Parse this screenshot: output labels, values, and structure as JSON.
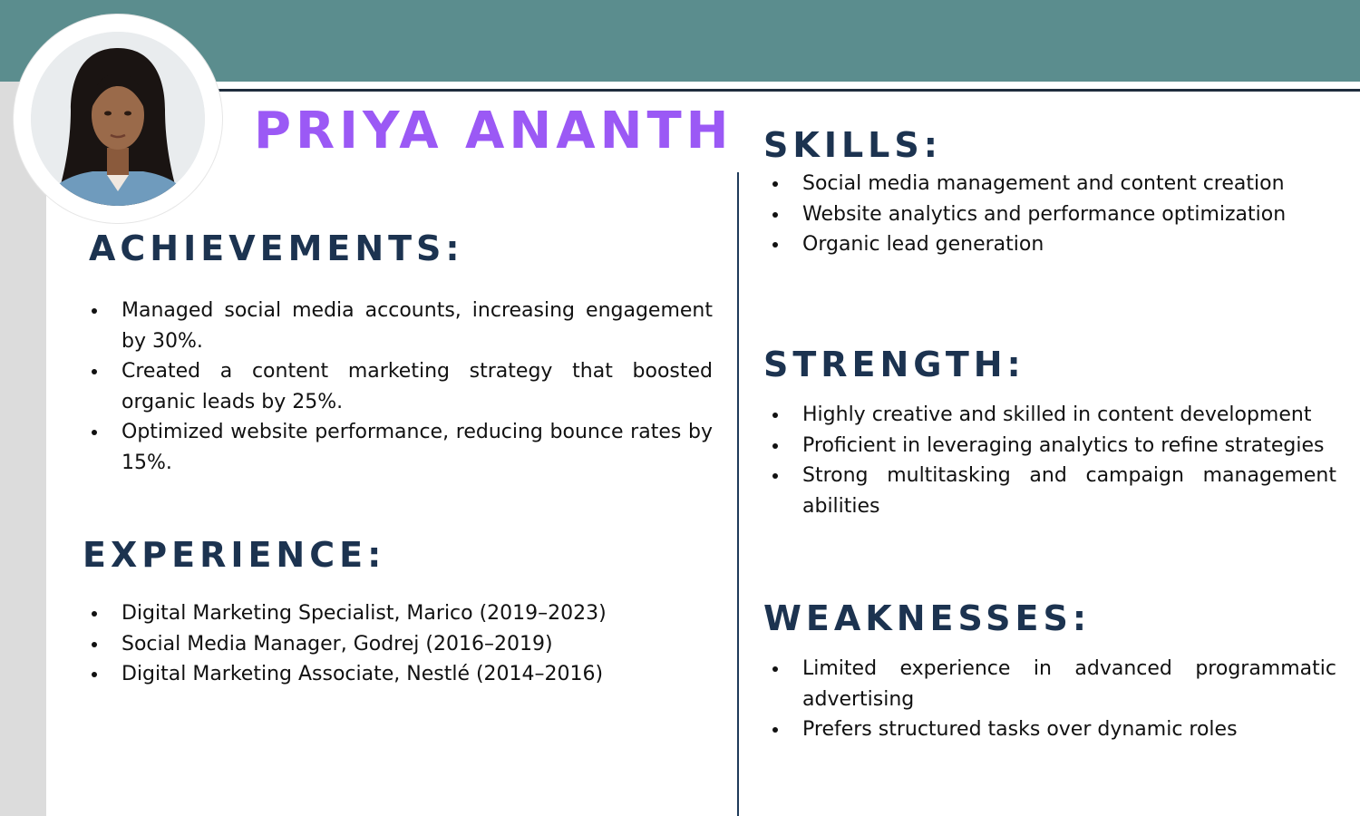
{
  "name": "PRIYA ANANTH",
  "avatar_icon": "profile-photo",
  "colors": {
    "top_band": "#5b8d8e",
    "name": "#9b59f5",
    "headings": "#1c3350",
    "left_strip": "#dcdcdc"
  },
  "achievements": {
    "heading": "ACHIEVEMENTS:",
    "items": [
      "Managed social media accounts, increasing engagement by 30%.",
      "Created a content marketing strategy that boosted organic leads by 25%.",
      "Optimized website performance, reducing bounce rates by 15%."
    ]
  },
  "experience": {
    "heading": "EXPERIENCE:",
    "items": [
      "Digital Marketing Specialist, Marico (2019–2023)",
      "Social Media Manager, Godrej (2016–2019)",
      "Digital Marketing Associate, Nestlé (2014–2016)"
    ]
  },
  "skills": {
    "heading": "SKILLS:",
    "items": [
      "Social media management and content creation",
      "Website analytics and performance optimization",
      "Organic lead generation"
    ]
  },
  "strength": {
    "heading": "STRENGTH:",
    "items": [
      "Highly creative and skilled in content development",
      "Proficient in leveraging analytics to refine strategies",
      "Strong multitasking and campaign management abilities"
    ]
  },
  "weaknesses": {
    "heading": "WEAKNESSES:",
    "items": [
      "Limited experience in advanced programmatic advertising",
      "Prefers structured tasks over dynamic roles"
    ]
  }
}
